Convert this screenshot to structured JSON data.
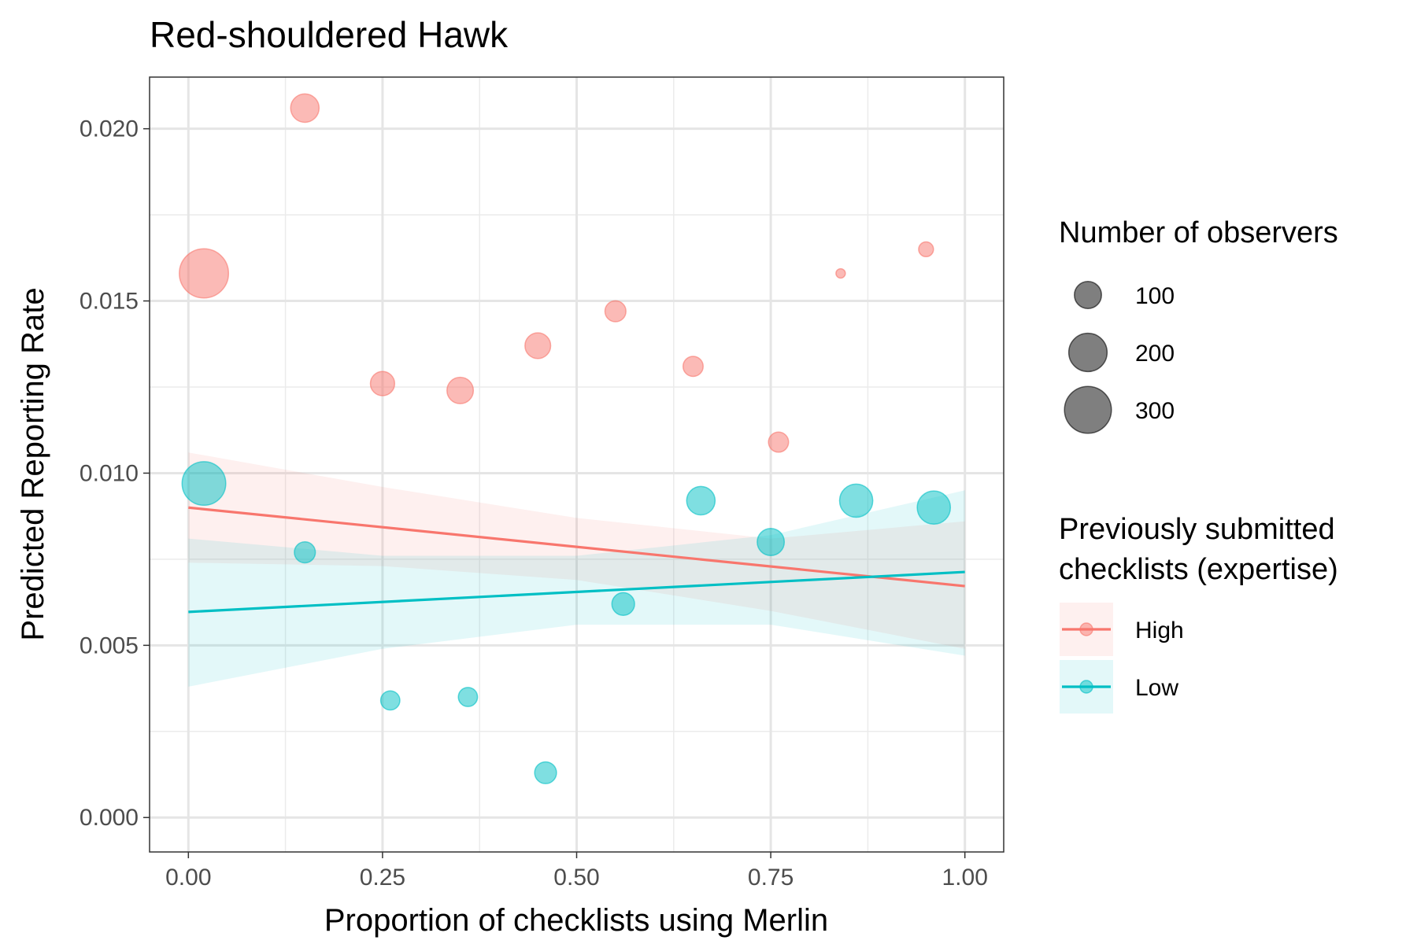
{
  "chart_data": {
    "type": "scatter",
    "title": "Red-shouldered Hawk",
    "xlabel": "Proportion of checklists using Merlin",
    "ylabel": "Predicted Reporting Rate",
    "xlim": [
      -0.05,
      1.05
    ],
    "ylim": [
      -0.001,
      0.0215
    ],
    "x_ticks": [
      0.0,
      0.25,
      0.5,
      0.75,
      1.0
    ],
    "x_tick_labels": [
      "0.00",
      "0.25",
      "0.50",
      "0.75",
      "1.00"
    ],
    "y_ticks": [
      0.0,
      0.005,
      0.01,
      0.015,
      0.02
    ],
    "y_tick_labels": [
      "0.000",
      "0.005",
      "0.010",
      "0.015",
      "0.020"
    ],
    "grid": true,
    "legend_position": "right",
    "size_legend": {
      "title": "Number of observers",
      "entries": [
        {
          "label": "100",
          "value": 100
        },
        {
          "label": "200",
          "value": 200
        },
        {
          "label": "300",
          "value": 300
        }
      ]
    },
    "color_legend": {
      "title_lines": [
        "Previously submitted",
        "checklists (expertise)"
      ],
      "entries": [
        {
          "label": "High",
          "color": "#F8766D"
        },
        {
          "label": "Low",
          "color": "#00BFC4"
        }
      ]
    },
    "series": [
      {
        "name": "High",
        "color": "#F8766D",
        "points": [
          {
            "x": 0.02,
            "y": 0.0158,
            "n": 330
          },
          {
            "x": 0.15,
            "y": 0.0206,
            "n": 110
          },
          {
            "x": 0.25,
            "y": 0.0126,
            "n": 80
          },
          {
            "x": 0.35,
            "y": 0.0124,
            "n": 95
          },
          {
            "x": 0.45,
            "y": 0.0137,
            "n": 90
          },
          {
            "x": 0.55,
            "y": 0.0147,
            "n": 60
          },
          {
            "x": 0.65,
            "y": 0.0131,
            "n": 55
          },
          {
            "x": 0.76,
            "y": 0.0109,
            "n": 55
          },
          {
            "x": 0.84,
            "y": 0.0158,
            "n": 12
          },
          {
            "x": 0.95,
            "y": 0.0165,
            "n": 30
          }
        ],
        "fit": {
          "x": [
            0.0,
            1.0
          ],
          "y": [
            0.009,
            0.00672
          ]
        },
        "ci": {
          "x": [
            0.0,
            0.25,
            0.5,
            0.75,
            1.0
          ],
          "lower": [
            0.0074,
            0.0073,
            0.0069,
            0.006,
            0.0049
          ],
          "upper": [
            0.0106,
            0.0096,
            0.0087,
            0.0081,
            0.0086
          ]
        }
      },
      {
        "name": "Low",
        "color": "#00BFC4",
        "points": [
          {
            "x": 0.02,
            "y": 0.0097,
            "n": 260
          },
          {
            "x": 0.15,
            "y": 0.0077,
            "n": 60
          },
          {
            "x": 0.26,
            "y": 0.0034,
            "n": 50
          },
          {
            "x": 0.36,
            "y": 0.0035,
            "n": 50
          },
          {
            "x": 0.46,
            "y": 0.0013,
            "n": 65
          },
          {
            "x": 0.56,
            "y": 0.0062,
            "n": 70
          },
          {
            "x": 0.66,
            "y": 0.0092,
            "n": 110
          },
          {
            "x": 0.75,
            "y": 0.008,
            "n": 100
          },
          {
            "x": 0.86,
            "y": 0.0092,
            "n": 150
          },
          {
            "x": 0.96,
            "y": 0.009,
            "n": 150
          }
        ],
        "fit": {
          "x": [
            0.0,
            1.0
          ],
          "y": [
            0.00597,
            0.00713
          ]
        },
        "ci": {
          "x": [
            0.0,
            0.25,
            0.5,
            0.75,
            1.0
          ],
          "lower": [
            0.0038,
            0.0049,
            0.0056,
            0.0056,
            0.0047
          ],
          "upper": [
            0.0081,
            0.0076,
            0.0076,
            0.0082,
            0.0095
          ]
        }
      }
    ]
  }
}
